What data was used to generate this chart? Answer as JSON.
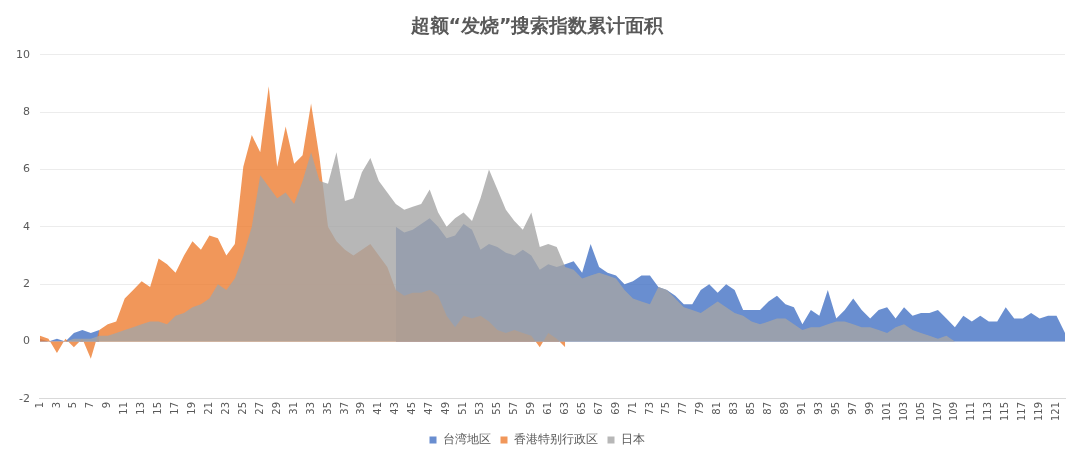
{
  "chart_data": {
    "type": "area",
    "title": "超额“发烧”搜索指数累计面积",
    "categories": [
      "1",
      null,
      "3",
      null,
      "5",
      null,
      "7",
      null,
      "9",
      null,
      "11",
      null,
      "13",
      null,
      "15",
      null,
      "17",
      null,
      "19",
      null,
      "21",
      null,
      "23",
      null,
      "25",
      null,
      "27",
      null,
      "29",
      null,
      "31",
      null,
      "33",
      null,
      "35",
      null,
      "37",
      null,
      "39",
      null,
      "41",
      null,
      "43",
      null,
      "45",
      null,
      "47",
      null,
      "49",
      null,
      "51",
      null,
      "53",
      null,
      "55",
      null,
      "57",
      null,
      "59",
      null,
      "61",
      null,
      "63",
      null,
      "65",
      null,
      "67",
      null,
      "69",
      null,
      "71",
      null,
      "73",
      null,
      "75",
      null,
      "77",
      null,
      "79",
      null,
      "81",
      null,
      "83",
      null,
      "85",
      null,
      "87",
      null,
      "89",
      null,
      "91",
      null,
      "93",
      null,
      "95",
      null,
      "97",
      null,
      "99",
      null,
      "101",
      null,
      "103",
      null,
      "105",
      null,
      "107",
      null,
      "109",
      null,
      "111",
      null,
      "113",
      null,
      "115",
      null,
      "117",
      null,
      "119",
      null,
      "121",
      null
    ],
    "series": [
      {
        "name": "台湾地区",
        "color": "#4472c4",
        "values": [
          0.1,
          0,
          0.1,
          0,
          0.3,
          0.4,
          0.3,
          0.4,
          null,
          null,
          null,
          null,
          null,
          null,
          null,
          null,
          null,
          null,
          null,
          null,
          null,
          null,
          null,
          null,
          null,
          null,
          null,
          null,
          null,
          null,
          null,
          null,
          null,
          null,
          null,
          null,
          null,
          null,
          null,
          null,
          null,
          null,
          4.0,
          3.8,
          3.9,
          4.1,
          4.3,
          4.0,
          3.6,
          3.7,
          4.1,
          3.9,
          3.2,
          3.4,
          3.3,
          3.1,
          3.0,
          3.2,
          3.0,
          2.5,
          2.7,
          2.6,
          2.7,
          2.8,
          2.4,
          3.4,
          2.6,
          2.4,
          2.3,
          2.0,
          2.1,
          2.3,
          2.3,
          1.9,
          1.8,
          1.6,
          1.3,
          1.3,
          1.8,
          2.0,
          1.7,
          2.0,
          1.8,
          1.1,
          1.1,
          1.1,
          1.4,
          1.6,
          1.3,
          1.2,
          0.6,
          1.1,
          0.9,
          1.8,
          0.8,
          1.1,
          1.5,
          1.1,
          0.8,
          1.1,
          1.2,
          0.8,
          1.2,
          0.9,
          1.0,
          1.0,
          1.1,
          0.8,
          0.5,
          0.9,
          0.7,
          0.9,
          0.7,
          0.7,
          1.2,
          0.8,
          0.8,
          1.0,
          0.8,
          0.9,
          0.9,
          0.3
        ]
      },
      {
        "name": "香港特别行政区",
        "color": "#ed7d31",
        "values": [
          0.2,
          0.1,
          -0.4,
          0.1,
          -0.2,
          0.1,
          -0.6,
          0.4,
          0.6,
          0.7,
          1.5,
          1.8,
          2.1,
          1.9,
          2.9,
          2.7,
          2.4,
          3.0,
          3.5,
          3.2,
          3.7,
          3.6,
          3.0,
          3.4,
          6.1,
          7.2,
          6.6,
          8.9,
          6.1,
          7.5,
          6.2,
          6.5,
          8.3,
          6.4,
          4.0,
          3.5,
          3.2,
          3.0,
          3.2,
          3.4,
          3.0,
          2.6,
          1.8,
          1.6,
          1.7,
          1.7,
          1.8,
          1.6,
          0.9,
          0.5,
          0.9,
          0.8,
          0.9,
          0.7,
          0.4,
          0.3,
          0.4,
          0.3,
          0.2,
          -0.2,
          0.3,
          0.1,
          -0.2,
          null,
          null,
          null,
          null,
          null,
          null,
          null,
          null,
          null,
          null,
          null,
          null,
          null,
          null,
          null,
          null,
          null,
          null,
          null,
          null,
          null,
          null,
          null,
          null,
          null,
          null,
          null,
          null,
          null,
          null,
          null,
          null,
          null,
          null,
          null,
          null,
          null,
          null,
          null,
          null,
          null,
          null,
          null,
          null,
          null,
          null,
          null,
          null,
          null,
          null,
          null,
          null,
          null,
          null,
          null,
          null,
          null,
          null,
          null
        ]
      },
      {
        "name": "日本",
        "color": "#a5a5a5",
        "values": [
          0,
          0,
          0,
          0,
          0.1,
          0.1,
          0.1,
          0.2,
          0.2,
          0.3,
          0.4,
          0.5,
          0.6,
          0.7,
          0.7,
          0.6,
          0.9,
          1.0,
          1.2,
          1.3,
          1.5,
          2.0,
          1.8,
          2.2,
          3.0,
          4.0,
          5.8,
          5.4,
          5.0,
          5.2,
          4.8,
          5.6,
          6.6,
          5.6,
          5.5,
          6.6,
          4.9,
          5.0,
          5.9,
          6.4,
          5.6,
          5.2,
          4.8,
          4.6,
          4.7,
          4.8,
          5.3,
          4.5,
          4.0,
          4.3,
          4.5,
          4.2,
          5.0,
          6.0,
          5.3,
          4.6,
          4.2,
          3.9,
          4.5,
          3.3,
          3.4,
          3.3,
          2.6,
          2.5,
          2.2,
          2.3,
          2.4,
          2.3,
          2.2,
          1.8,
          1.5,
          1.4,
          1.3,
          1.9,
          1.8,
          1.5,
          1.2,
          1.1,
          1.0,
          1.2,
          1.4,
          1.2,
          1.0,
          0.9,
          0.7,
          0.6,
          0.7,
          0.8,
          0.8,
          0.6,
          0.4,
          0.5,
          0.5,
          0.6,
          0.7,
          0.7,
          0.6,
          0.5,
          0.5,
          0.4,
          0.3,
          0.5,
          0.6,
          0.4,
          0.3,
          0.2,
          0.1,
          0.2,
          0,
          null,
          null,
          null,
          null,
          null,
          null,
          null,
          null,
          null,
          null,
          null,
          null,
          null
        ]
      }
    ],
    "ylim": [
      -2,
      10
    ],
    "yticks": [
      -2,
      0,
      2,
      4,
      6,
      8,
      10
    ],
    "grid": "y",
    "legend": "bottom"
  }
}
